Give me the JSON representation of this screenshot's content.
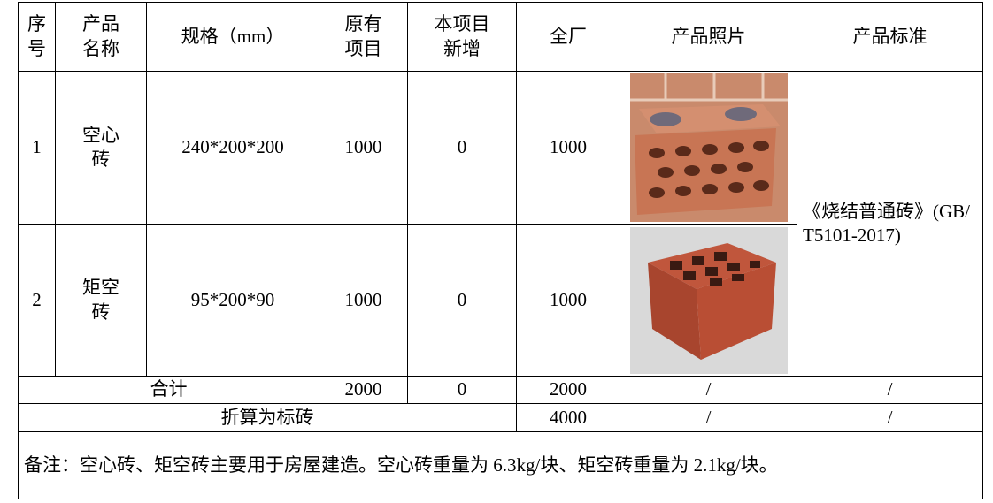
{
  "table": {
    "headers": [
      "序号",
      "产品名称",
      "规格（mm）",
      "原有项目",
      "本项目新增",
      "全厂",
      "产品照片",
      "产品标准"
    ],
    "rows": [
      [
        "1",
        "空心砖",
        "240*200*200",
        "1000",
        "0",
        "1000"
      ],
      [
        "2",
        "矩空砖",
        "95*200*90",
        "1000",
        "0",
        "1000"
      ]
    ],
    "standard": "《烧结普通砖》(GB/T5101-2017)",
    "total": {
      "label": "合计",
      "existing": "2000",
      "new": "0",
      "plant": "2000",
      "photo": "/",
      "standard": "/"
    },
    "standard_brick": {
      "label": "折算为标砖",
      "plant": "4000",
      "photo": "/",
      "standard": "/"
    },
    "note": "备注：空心砖、矩空砖主要用于房屋建造。空心砖重量为 6.3kg/块、矩空砖重量为 2.1kg/块。"
  }
}
